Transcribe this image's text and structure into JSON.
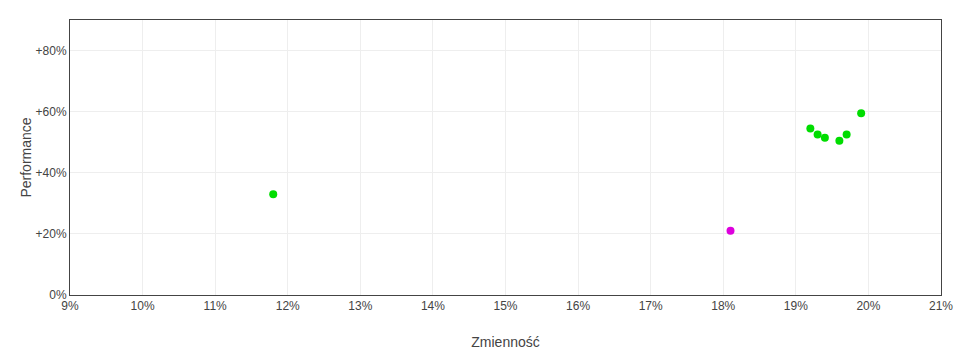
{
  "chart_data": {
    "type": "scatter",
    "xlabel": "Zmienność",
    "ylabel": "Performance",
    "series": [
      {
        "color": "#00dd00",
        "x": [
          0.118,
          0.192,
          0.193,
          0.194,
          0.196,
          0.197,
          0.199
        ],
        "values": [
          0.33,
          0.545,
          0.525,
          0.515,
          0.505,
          0.525,
          0.595
        ]
      },
      {
        "color": "#dd00dd",
        "x": [
          0.181
        ],
        "values": [
          0.21
        ]
      }
    ],
    "xlim": [
      0.09,
      0.21
    ],
    "ylim": [
      0.0,
      0.9
    ],
    "xticks": [
      {
        "value": 0.09,
        "label": "9%"
      },
      {
        "value": 0.1,
        "label": "10%"
      },
      {
        "value": 0.11,
        "label": "11%"
      },
      {
        "value": 0.12,
        "label": "12%"
      },
      {
        "value": 0.13,
        "label": "13%"
      },
      {
        "value": 0.14,
        "label": "14%"
      },
      {
        "value": 0.15,
        "label": "15%"
      },
      {
        "value": 0.16,
        "label": "16%"
      },
      {
        "value": 0.17,
        "label": "17%"
      },
      {
        "value": 0.18,
        "label": "18%"
      },
      {
        "value": 0.19,
        "label": "19%"
      },
      {
        "value": 0.2,
        "label": "20%"
      },
      {
        "value": 0.21,
        "label": "21%"
      }
    ],
    "yticks": [
      {
        "value": 0.0,
        "label": "0%"
      },
      {
        "value": 0.2,
        "label": "+20%"
      },
      {
        "value": 0.4,
        "label": "+40%"
      },
      {
        "value": 0.6,
        "label": "+60%"
      },
      {
        "value": 0.8,
        "label": "+80%"
      }
    ],
    "grid": true
  }
}
